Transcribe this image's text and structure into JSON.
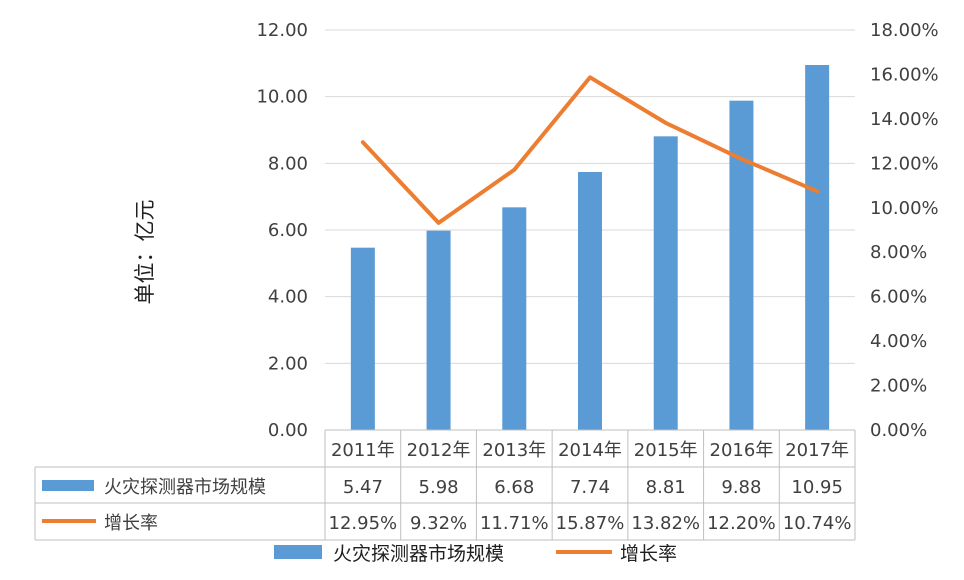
{
  "chart_data": {
    "type": "bar",
    "categories": [
      "2011年",
      "2012年",
      "2013年",
      "2014年",
      "2015年",
      "2016年",
      "2017年"
    ],
    "series": [
      {
        "name": "火灾探测器市场规模",
        "type": "bar",
        "axis": "left",
        "values": [
          5.47,
          5.98,
          6.68,
          7.74,
          8.81,
          9.88,
          10.95
        ],
        "labels": [
          "5.47",
          "5.98",
          "6.68",
          "7.74",
          "8.81",
          "9.88",
          "10.95"
        ]
      },
      {
        "name": "增长率",
        "type": "line",
        "axis": "right",
        "values": [
          12.95,
          9.32,
          11.71,
          15.87,
          13.82,
          12.2,
          10.74
        ],
        "labels": [
          "12.95%",
          "9.32%",
          "11.71%",
          "15.87%",
          "13.82%",
          "12.20%",
          "10.74%"
        ]
      }
    ],
    "ylabel": "单位：亿元",
    "ylim": [
      0,
      12
    ],
    "y_ticks": [
      "0.00",
      "2.00",
      "4.00",
      "6.00",
      "8.00",
      "10.00",
      "12.00"
    ],
    "y2lim": [
      0,
      18
    ],
    "y2_ticks": [
      "0.00%",
      "2.00%",
      "4.00%",
      "6.00%",
      "8.00%",
      "10.00%",
      "12.00%",
      "14.00%",
      "16.00%",
      "18.00%"
    ],
    "grid": "horizontal",
    "legend": "bottom",
    "data_table": true,
    "colors": {
      "bar": "#5b9bd5",
      "line": "#ed7d31",
      "grid": "#d9d9d9"
    }
  }
}
